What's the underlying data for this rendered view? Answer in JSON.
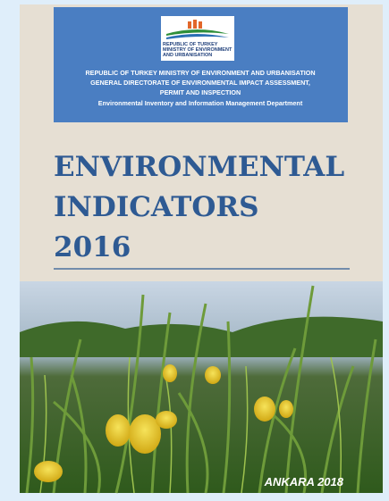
{
  "logo": {
    "lines": [
      "REPUBLIC OF TURKEY",
      "MINISTRY OF ENVIRONMENT",
      "AND URBANISATION"
    ]
  },
  "header": {
    "lines": [
      "REPUBLIC OF TURKEY MINISTRY OF ENVIRONMENT AND URBANISATION",
      "GENERAL DIRECTORATE OF ENVIRONMENTAL IMPACT ASSESSMENT,",
      "PERMIT AND INSPECTION",
      "Environmental Inventory and Information Management Department"
    ]
  },
  "title": {
    "lines": [
      "ENVIRONMENTAL",
      "INDICATORS",
      "2016"
    ]
  },
  "footer": {
    "place": "ANKARA 2018"
  }
}
